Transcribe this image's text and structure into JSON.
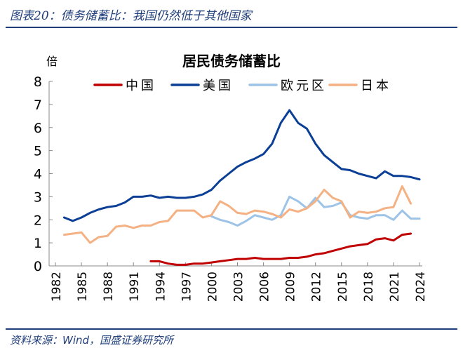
{
  "header": {
    "title": "图表20：债务储蓄比：我国仍然低于其他国家"
  },
  "footer": {
    "source": "资料来源：Wind，国盛证券研究所"
  },
  "chart_data": {
    "type": "line",
    "title": "居民债务储蓄比",
    "ylabel": "倍",
    "ylim": [
      0,
      8
    ],
    "yticks": [
      "0",
      "1",
      "2",
      "3",
      "4",
      "5",
      "6",
      "7",
      "8"
    ],
    "xlim": [
      1982,
      2024
    ],
    "xticks": [
      "1982",
      "1985",
      "1988",
      "1991",
      "1994",
      "1997",
      "2000",
      "2003",
      "2006",
      "2009",
      "2012",
      "2015",
      "2018",
      "2021",
      "2024"
    ],
    "legend": "top",
    "series": [
      {
        "name": "中国",
        "color": "#C00000",
        "start": 1993,
        "values": [
          0.2,
          0.2,
          0.1,
          0.05,
          0.05,
          0.1,
          0.1,
          0.15,
          0.2,
          0.25,
          0.3,
          0.3,
          0.35,
          0.3,
          0.3,
          0.3,
          0.35,
          0.35,
          0.4,
          0.5,
          0.55,
          0.65,
          0.75,
          0.85,
          0.9,
          0.95,
          1.15,
          1.2,
          1.1,
          1.35,
          1.4
        ]
      },
      {
        "name": "美国",
        "color": "#0B3F95",
        "start": 1983,
        "values": [
          2.1,
          1.95,
          2.1,
          2.3,
          2.45,
          2.55,
          2.6,
          2.75,
          3.0,
          3.0,
          3.05,
          2.95,
          3.0,
          2.95,
          2.95,
          3.0,
          3.1,
          3.3,
          3.7,
          4.0,
          4.3,
          4.5,
          4.65,
          4.85,
          5.3,
          6.2,
          6.75,
          6.2,
          5.95,
          5.3,
          4.8,
          4.5,
          4.2,
          4.15,
          4.0,
          3.9,
          3.8,
          4.1,
          3.9,
          3.9,
          3.85,
          3.75
        ]
      },
      {
        "name": "欧元区",
        "color": "#9DC3E6",
        "start": 2000,
        "values": [
          2.15,
          2.0,
          1.9,
          1.75,
          1.95,
          2.2,
          2.1,
          2.0,
          2.2,
          3.0,
          2.8,
          2.5,
          2.95,
          2.55,
          2.6,
          2.75,
          2.2,
          2.1,
          2.05,
          2.2,
          2.2,
          2.0,
          2.4,
          2.05,
          2.05
        ]
      },
      {
        "name": "日本",
        "color": "#F4B183",
        "start": 1983,
        "values": [
          1.35,
          1.4,
          1.45,
          1.0,
          1.25,
          1.3,
          1.7,
          1.75,
          1.65,
          1.75,
          1.75,
          1.9,
          1.95,
          2.4,
          2.4,
          2.4,
          2.1,
          2.2,
          2.8,
          2.6,
          2.3,
          2.25,
          2.4,
          2.35,
          2.25,
          2.1,
          2.45,
          2.35,
          2.5,
          2.8,
          3.3,
          2.95,
          2.8,
          2.1,
          2.35,
          2.3,
          2.35,
          2.5,
          2.55,
          3.45,
          2.7
        ]
      }
    ]
  }
}
